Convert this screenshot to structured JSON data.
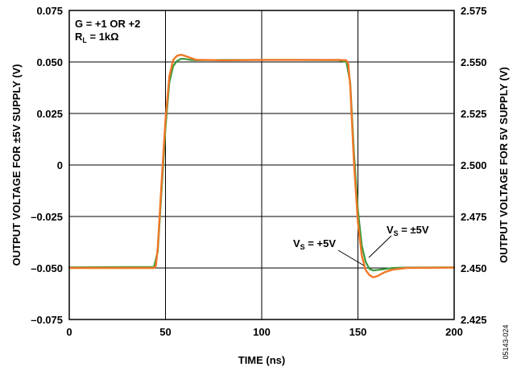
{
  "chart_data": {
    "type": "line",
    "xlabel": "TIME (ns)",
    "ylabel_left": "OUTPUT VOLTAGE FOR ±5V SUPPLY (V)",
    "ylabel_right": "OUTPUT VOLTAGE FOR 5V SUPPLY (V)",
    "xlim": [
      0,
      200
    ],
    "ylim_left": [
      -0.075,
      0.075
    ],
    "ylim_right": [
      2.425,
      2.575
    ],
    "x_ticks": [
      "0",
      "50",
      "100",
      "150",
      "200"
    ],
    "y_ticks_left": [
      "0.075",
      "0.050",
      "0.025",
      "0",
      "–0.025",
      "–0.050",
      "–0.075"
    ],
    "y_ticks_right": [
      "2.575",
      "2.550",
      "2.525",
      "2.500",
      "2.475",
      "2.450",
      "2.425"
    ],
    "grid": true,
    "annotation_box": {
      "line1": "G = +1 OR +2",
      "line2_main": "R",
      "line2_sub": "L",
      "line2_rest": " = 1kΩ"
    },
    "series": [
      {
        "label_main": "V",
        "label_sub": "S",
        "label_rest": " = ±5V",
        "color": "#3a9a3a",
        "x": [
          0,
          44,
          46,
          48,
          50,
          52,
          54,
          56,
          58,
          60,
          63,
          66,
          70,
          80,
          100,
          120,
          140,
          144,
          146,
          148,
          150,
          152,
          154,
          156,
          158,
          160,
          164,
          168,
          175,
          200
        ],
        "y": [
          -0.0497,
          -0.0495,
          -0.042,
          -0.012,
          0.018,
          0.04,
          0.048,
          0.0505,
          0.0515,
          0.0515,
          0.051,
          0.0508,
          0.0509,
          0.051,
          0.051,
          0.051,
          0.0509,
          0.05,
          0.04,
          0.005,
          -0.022,
          -0.039,
          -0.047,
          -0.0505,
          -0.0512,
          -0.051,
          -0.0505,
          -0.05,
          -0.0498,
          -0.0497
        ]
      },
      {
        "label_main": "V",
        "label_sub": "S",
        "label_rest": " = +5V",
        "color": "#f07828",
        "x": [
          0,
          44,
          45,
          46,
          48,
          50,
          52,
          54,
          56,
          58,
          60,
          63,
          66,
          70,
          80,
          100,
          120,
          140,
          144,
          145,
          146,
          148,
          150,
          152,
          154,
          156,
          158,
          160,
          164,
          168,
          175,
          200
        ],
        "y": [
          -0.05,
          -0.05,
          -0.049,
          -0.04,
          -0.008,
          0.022,
          0.043,
          0.051,
          0.053,
          0.0535,
          0.053,
          0.052,
          0.051,
          0.051,
          0.0508,
          0.051,
          0.051,
          0.051,
          0.0508,
          0.049,
          0.038,
          0.0,
          -0.028,
          -0.044,
          -0.051,
          -0.0535,
          -0.0545,
          -0.054,
          -0.052,
          -0.0508,
          -0.05,
          -0.0498
        ]
      }
    ]
  },
  "figure_id": "05143-024"
}
